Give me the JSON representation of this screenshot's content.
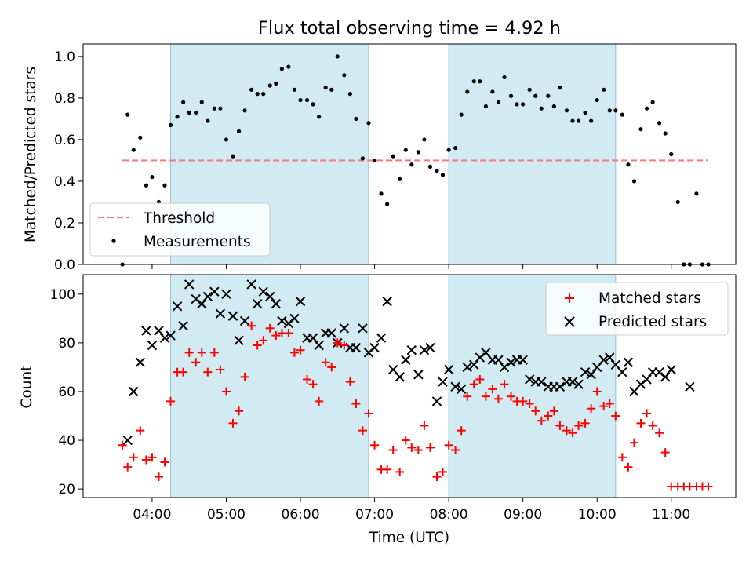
{
  "figure": {
    "title": "Flux total observing time = 4.92 h"
  },
  "colors": {
    "shade": "#add8e6",
    "threshold": "#f08080",
    "measurement": "#000000",
    "matched": "#ff0000",
    "predicted": "#000000"
  },
  "chart_data": [
    {
      "type": "scatter",
      "panel": "top",
      "title": "Flux total observing time = 4.92 h",
      "xlabel": "",
      "ylabel": "Matched/Predicted stars",
      "x_unit": "hours (UTC)",
      "xlim": [
        3.07,
        11.87
      ],
      "ylim": [
        0.0,
        1.06
      ],
      "yticks": [
        0.0,
        0.2,
        0.4,
        0.6,
        0.8,
        1.0
      ],
      "ytick_labels": [
        "0.0",
        "0.2",
        "0.4",
        "0.6",
        "0.8",
        "1.0"
      ],
      "xticks": [
        4,
        5,
        6,
        7,
        8,
        9,
        10,
        11
      ],
      "shaded_intervals": [
        [
          4.25,
          6.92
        ],
        [
          8.0,
          10.25
        ]
      ],
      "legend": {
        "position": "lower-left",
        "entries": [
          "Threshold",
          "Measurements"
        ]
      },
      "series": [
        {
          "name": "Threshold",
          "kind": "dashed-line",
          "x": [
            3.6,
            11.5
          ],
          "y": [
            0.5,
            0.5
          ]
        },
        {
          "name": "Measurements",
          "kind": "points",
          "x": [
            3.6,
            3.67,
            3.75,
            3.84,
            3.92,
            4.0,
            4.09,
            4.17,
            4.25,
            4.34,
            4.42,
            4.5,
            4.59,
            4.67,
            4.75,
            4.84,
            4.92,
            5.0,
            5.09,
            5.17,
            5.25,
            5.34,
            5.42,
            5.5,
            5.59,
            5.67,
            5.75,
            5.84,
            5.92,
            6.0,
            6.09,
            6.17,
            6.25,
            6.34,
            6.42,
            6.5,
            6.59,
            6.67,
            6.75,
            6.84,
            6.92,
            7.0,
            7.09,
            7.17,
            7.25,
            7.34,
            7.42,
            7.5,
            7.59,
            7.67,
            7.75,
            7.84,
            7.92,
            8.0,
            8.09,
            8.17,
            8.25,
            8.34,
            8.42,
            8.5,
            8.59,
            8.67,
            8.75,
            8.84,
            8.92,
            9.0,
            9.09,
            9.17,
            9.25,
            9.34,
            9.42,
            9.5,
            9.59,
            9.67,
            9.75,
            9.84,
            9.92,
            10.0,
            10.09,
            10.17,
            10.25,
            10.34,
            10.42,
            10.5,
            10.59,
            10.67,
            10.75,
            10.84,
            10.92,
            11.0,
            11.09,
            11.17,
            11.25,
            11.34,
            11.42,
            11.5
          ],
          "y": [
            0.0,
            0.72,
            0.55,
            0.61,
            0.38,
            0.42,
            0.3,
            0.38,
            0.67,
            0.71,
            0.78,
            0.73,
            0.73,
            0.78,
            0.69,
            0.75,
            0.75,
            0.6,
            0.52,
            0.64,
            0.74,
            0.84,
            0.82,
            0.82,
            0.86,
            0.87,
            0.94,
            0.95,
            0.84,
            0.79,
            0.79,
            0.77,
            0.71,
            0.85,
            0.84,
            1.0,
            0.91,
            0.82,
            0.7,
            0.51,
            0.68,
            0.5,
            0.34,
            0.29,
            0.52,
            0.41,
            0.55,
            0.48,
            0.54,
            0.6,
            0.47,
            0.45,
            0.43,
            0.55,
            0.56,
            0.72,
            0.83,
            0.88,
            0.88,
            0.76,
            0.83,
            0.78,
            0.9,
            0.81,
            0.77,
            0.77,
            0.84,
            0.81,
            0.75,
            0.81,
            0.76,
            0.85,
            0.74,
            0.69,
            0.69,
            0.73,
            0.69,
            0.79,
            0.84,
            0.74,
            0.74,
            0.72,
            0.48,
            0.4,
            0.65,
            0.75,
            0.78,
            0.68,
            0.63,
            0.53,
            0.3,
            0.0,
            0.0,
            0.34,
            0.0,
            0.0
          ]
        }
      ]
    },
    {
      "type": "scatter",
      "panel": "bottom",
      "xlabel": "Time (UTC)",
      "ylabel": "Count",
      "x_unit": "hours (UTC)",
      "xlim": [
        3.07,
        11.87
      ],
      "ylim": [
        16.5,
        108
      ],
      "yticks": [
        20,
        40,
        60,
        80,
        100
      ],
      "ytick_labels": [
        "20",
        "40",
        "60",
        "80",
        "100"
      ],
      "xticks": [
        4,
        5,
        6,
        7,
        8,
        9,
        10,
        11
      ],
      "xtick_labels": [
        "04:00",
        "05:00",
        "06:00",
        "07:00",
        "08:00",
        "09:00",
        "10:00",
        "11:00"
      ],
      "shaded_intervals": [
        [
          4.25,
          6.92
        ],
        [
          8.0,
          10.25
        ]
      ],
      "legend": {
        "position": "top-right",
        "entries": [
          "Matched stars",
          "Predicted stars"
        ]
      },
      "series": [
        {
          "name": "Matched stars",
          "marker": "+",
          "x": [
            3.6,
            3.67,
            3.75,
            3.84,
            3.92,
            4.0,
            4.09,
            4.17,
            4.25,
            4.34,
            4.42,
            4.5,
            4.59,
            4.67,
            4.75,
            4.84,
            4.92,
            5.0,
            5.09,
            5.17,
            5.25,
            5.34,
            5.42,
            5.5,
            5.59,
            5.67,
            5.75,
            5.84,
            5.92,
            6.0,
            6.09,
            6.17,
            6.25,
            6.34,
            6.42,
            6.5,
            6.59,
            6.67,
            6.75,
            6.84,
            6.92,
            7.0,
            7.09,
            7.17,
            7.25,
            7.34,
            7.42,
            7.5,
            7.59,
            7.67,
            7.75,
            7.84,
            7.92,
            8.0,
            8.09,
            8.17,
            8.25,
            8.34,
            8.42,
            8.5,
            8.59,
            8.67,
            8.75,
            8.84,
            8.92,
            9.0,
            9.09,
            9.17,
            9.25,
            9.34,
            9.42,
            9.5,
            9.59,
            9.67,
            9.75,
            9.84,
            9.92,
            10.0,
            10.09,
            10.17,
            10.25,
            10.34,
            10.42,
            10.5,
            10.59,
            10.67,
            10.75,
            10.84,
            10.92,
            11.0,
            11.09,
            11.17,
            11.25,
            11.34,
            11.42,
            11.5
          ],
          "y": [
            38,
            29,
            33,
            44,
            32,
            33,
            25,
            31,
            56,
            68,
            68,
            76,
            72,
            76,
            68,
            76,
            69,
            60,
            47,
            52,
            66,
            87,
            79,
            81,
            86,
            83,
            84,
            84,
            76,
            77,
            65,
            63,
            56,
            72,
            70,
            80,
            79,
            64,
            55,
            44,
            51,
            38,
            28,
            28,
            36,
            27,
            40,
            37,
            36,
            46,
            37,
            25,
            27,
            38,
            36,
            44,
            58,
            63,
            65,
            58,
            61,
            57,
            63,
            58,
            56,
            56,
            55,
            52,
            48,
            50,
            52,
            46,
            44,
            43,
            46,
            47,
            53,
            60,
            54,
            55,
            50,
            33,
            29,
            39,
            47,
            51,
            46,
            43,
            35,
            21,
            21,
            21,
            21,
            21,
            21,
            21
          ]
        },
        {
          "name": "Predicted stars",
          "marker": "x",
          "x": [
            3.67,
            3.75,
            3.84,
            3.92,
            4.0,
            4.09,
            4.17,
            4.25,
            4.34,
            4.42,
            4.5,
            4.59,
            4.67,
            4.75,
            4.84,
            4.92,
            5.0,
            5.09,
            5.17,
            5.25,
            5.34,
            5.42,
            5.5,
            5.59,
            5.67,
            5.75,
            5.84,
            5.92,
            6.0,
            6.09,
            6.17,
            6.25,
            6.34,
            6.42,
            6.5,
            6.59,
            6.67,
            6.75,
            6.84,
            6.92,
            7.0,
            7.09,
            7.17,
            7.25,
            7.34,
            7.42,
            7.5,
            7.59,
            7.67,
            7.75,
            7.84,
            7.92,
            8.0,
            8.09,
            8.17,
            8.25,
            8.34,
            8.42,
            8.5,
            8.59,
            8.67,
            8.75,
            8.84,
            8.92,
            9.0,
            9.09,
            9.17,
            9.25,
            9.34,
            9.42,
            9.5,
            9.59,
            9.67,
            9.75,
            9.84,
            9.92,
            10.0,
            10.09,
            10.17,
            10.25,
            10.34,
            10.42,
            10.5,
            10.59,
            10.67,
            10.75,
            10.84,
            10.92,
            11.0,
            11.25
          ],
          "y": [
            40,
            60,
            72,
            85,
            79,
            85,
            82,
            83,
            95,
            87,
            104,
            98,
            96,
            99,
            101,
            92,
            100,
            91,
            81,
            89,
            104,
            96,
            101,
            99,
            96,
            89,
            88,
            90,
            97,
            82,
            82,
            79,
            84,
            84,
            80,
            86,
            78,
            78,
            86,
            76,
            78,
            82,
            97,
            69,
            66,
            73,
            77,
            67,
            77,
            78,
            56,
            64,
            69,
            62,
            61,
            70,
            71,
            74,
            76,
            73,
            73,
            70,
            72,
            73,
            73,
            65,
            64,
            64,
            62,
            62,
            62,
            64,
            64,
            63,
            68,
            67,
            70,
            73,
            74,
            71,
            68,
            72,
            60,
            63,
            65,
            68,
            68,
            66,
            69,
            62
          ]
        }
      ]
    }
  ]
}
